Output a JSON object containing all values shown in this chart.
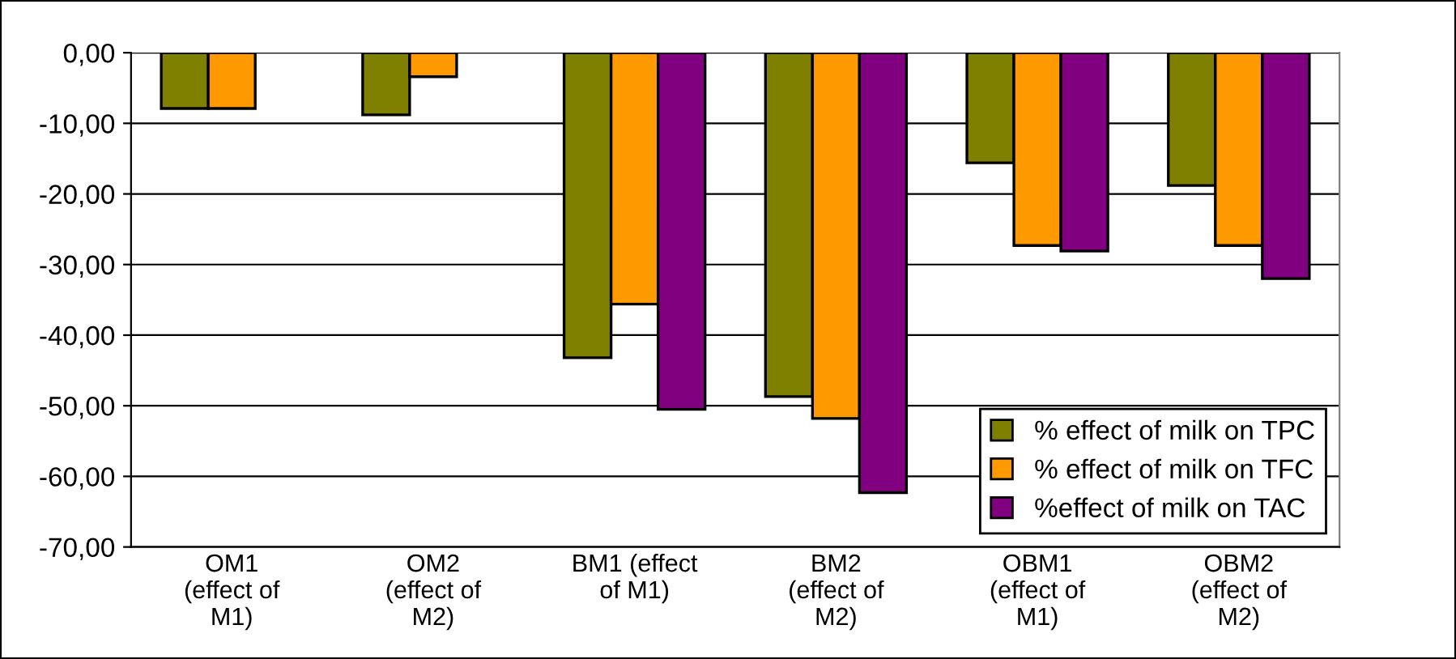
{
  "chart_data": {
    "type": "bar",
    "categories": [
      "OM1\n(effect of\nM1)",
      "OM2\n(effect of\nM2)",
      "BM1 (effect\nof M1)",
      "BM2\n(effect of\nM2)",
      "OBM1\n(effect of\nM1)",
      "OBM2\n(effect of\nM2)"
    ],
    "series": [
      {
        "name": "% effect of milk on TPC",
        "color": "#808000",
        "values": [
          -7.9,
          -8.8,
          -43.2,
          -48.7,
          -15.6,
          -18.8
        ]
      },
      {
        "name": "% effect of milk on TFC",
        "color": "#ff9900",
        "values": [
          -7.9,
          -3.4,
          -35.6,
          -51.8,
          -27.3,
          -27.3
        ]
      },
      {
        "name": "%effect of milk on TAC",
        "color": "#800080",
        "values": [
          null,
          null,
          -50.5,
          -62.3,
          -28.1,
          -32.0
        ]
      }
    ],
    "ylim": [
      -70,
      0
    ],
    "yticks": [
      {
        "value": 0,
        "label": "0,00"
      },
      {
        "value": -10,
        "label": "-10,00"
      },
      {
        "value": -20,
        "label": "-20,00"
      },
      {
        "value": -30,
        "label": "-30,00"
      },
      {
        "value": -40,
        "label": "-40,00"
      },
      {
        "value": -50,
        "label": "-50,00"
      },
      {
        "value": -60,
        "label": "-60,00"
      },
      {
        "value": -70,
        "label": "-70,00"
      }
    ],
    "grid": "y",
    "legend": "bottom right"
  }
}
